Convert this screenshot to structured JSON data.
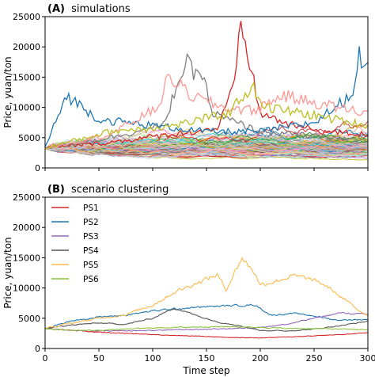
{
  "chart_data": [
    {
      "type": "line",
      "panel_label": "(A)",
      "title": "simulations",
      "ylabel": "Price, yuan/ton",
      "xlabel": "",
      "xlim": [
        0,
        300
      ],
      "ylim": [
        0,
        25000
      ],
      "x_ticks": [
        0,
        50,
        100,
        150,
        200,
        250,
        300
      ],
      "y_ticks": [
        0,
        5000,
        10000,
        15000,
        20000,
        25000
      ],
      "show_x_tick_labels": false,
      "n_series": 100,
      "start_value": 3300,
      "highlights": [
        {
          "color": "#d62728",
          "points": [
            [
              0,
              3300
            ],
            [
              60,
              4200
            ],
            [
              120,
              5600
            ],
            [
              160,
              6500
            ],
            [
              175,
              13000
            ],
            [
              182,
              23500
            ],
            [
              190,
              17500
            ],
            [
              200,
              9000
            ],
            [
              230,
              7000
            ],
            [
              260,
              6000
            ],
            [
              300,
              5500
            ]
          ]
        },
        {
          "color": "#7f7f7f",
          "points": [
            [
              0,
              3300
            ],
            [
              60,
              5000
            ],
            [
              110,
              7000
            ],
            [
              125,
              15000
            ],
            [
              132,
              17300
            ],
            [
              140,
              15000
            ],
            [
              145,
              16800
            ],
            [
              155,
              9000
            ],
            [
              200,
              6000
            ],
            [
              300,
              4500
            ]
          ]
        },
        {
          "color": "#1f77b4",
          "points": [
            [
              0,
              3300
            ],
            [
              20,
              12000
            ],
            [
              50,
              8000
            ],
            [
              100,
              7000
            ],
            [
              150,
              6000
            ],
            [
              200,
              6000
            ],
            [
              250,
              7500
            ],
            [
              285,
              12000
            ],
            [
              292,
              18600
            ],
            [
              300,
              16000
            ]
          ]
        },
        {
          "color": "#ff9896",
          "points": [
            [
              0,
              3300
            ],
            [
              60,
              5500
            ],
            [
              105,
              10000
            ],
            [
              115,
              15200
            ],
            [
              135,
              12000
            ],
            [
              165,
              10000
            ],
            [
              195,
              9500
            ],
            [
              220,
              12000
            ],
            [
              245,
              11000
            ],
            [
              300,
              9000
            ]
          ]
        },
        {
          "color": "#bcbd22",
          "points": [
            [
              0,
              3300
            ],
            [
              60,
              6000
            ],
            [
              120,
              7000
            ],
            [
              170,
              9000
            ],
            [
              192,
              13500
            ],
            [
              205,
              10000
            ],
            [
              240,
              9000
            ],
            [
              300,
              7000
            ]
          ]
        }
      ]
    },
    {
      "type": "line",
      "panel_label": "(B)",
      "title": "scenario clustering",
      "ylabel": "Price, yuan/ton",
      "xlabel": "Time step",
      "xlim": [
        0,
        300
      ],
      "ylim": [
        0,
        25000
      ],
      "x_ticks": [
        0,
        50,
        100,
        150,
        200,
        250,
        300
      ],
      "y_ticks": [
        0,
        5000,
        10000,
        15000,
        20000,
        25000
      ],
      "legend_position": "top-left",
      "series": [
        {
          "name": "PS1",
          "color": "#d62728",
          "points": [
            [
              0,
              3300
            ],
            [
              25,
              3000
            ],
            [
              50,
              2700
            ],
            [
              75,
              2500
            ],
            [
              100,
              2300
            ],
            [
              125,
              2150
            ],
            [
              150,
              2000
            ],
            [
              175,
              1800
            ],
            [
              200,
              1750
            ],
            [
              225,
              1900
            ],
            [
              250,
              2100
            ],
            [
              275,
              2300
            ],
            [
              300,
              2600
            ]
          ]
        },
        {
          "name": "PS2",
          "color": "#1f77b4",
          "points": [
            [
              0,
              3300
            ],
            [
              25,
              4600
            ],
            [
              50,
              5200
            ],
            [
              75,
              5500
            ],
            [
              100,
              6200
            ],
            [
              125,
              6600
            ],
            [
              150,
              6900
            ],
            [
              175,
              7100
            ],
            [
              195,
              7200
            ],
            [
              210,
              5500
            ],
            [
              230,
              5800
            ],
            [
              250,
              5400
            ],
            [
              270,
              4700
            ],
            [
              300,
              4800
            ]
          ]
        },
        {
          "name": "PS3",
          "color": "#9467bd",
          "points": [
            [
              0,
              3300
            ],
            [
              25,
              3000
            ],
            [
              50,
              2900
            ],
            [
              75,
              2900
            ],
            [
              100,
              3000
            ],
            [
              125,
              3100
            ],
            [
              150,
              3200
            ],
            [
              175,
              3300
            ],
            [
              200,
              3500
            ],
            [
              225,
              4000
            ],
            [
              250,
              5000
            ],
            [
              275,
              5900
            ],
            [
              300,
              5600
            ]
          ]
        },
        {
          "name": "PS4",
          "color": "#555555",
          "points": [
            [
              0,
              3300
            ],
            [
              25,
              3900
            ],
            [
              50,
              4200
            ],
            [
              75,
              4000
            ],
            [
              100,
              5000
            ],
            [
              120,
              6700
            ],
            [
              140,
              5500
            ],
            [
              160,
              4400
            ],
            [
              175,
              4000
            ],
            [
              200,
              3000
            ],
            [
              225,
              2900
            ],
            [
              250,
              3200
            ],
            [
              275,
              3800
            ],
            [
              300,
              4500
            ]
          ]
        },
        {
          "name": "PS5",
          "color": "#fdb94e",
          "points": [
            [
              0,
              3300
            ],
            [
              25,
              4200
            ],
            [
              50,
              5000
            ],
            [
              75,
              5600
            ],
            [
              100,
              7200
            ],
            [
              120,
              9300
            ],
            [
              140,
              10800
            ],
            [
              160,
              12200
            ],
            [
              168,
              9700
            ],
            [
              183,
              15000
            ],
            [
              195,
              12500
            ],
            [
              200,
              10500
            ],
            [
              215,
              11200
            ],
            [
              230,
              12000
            ],
            [
              245,
              11500
            ],
            [
              260,
              10500
            ],
            [
              275,
              8500
            ],
            [
              290,
              6500
            ],
            [
              300,
              5500
            ]
          ]
        },
        {
          "name": "PS6",
          "color": "#8cc63f",
          "points": [
            [
              0,
              3300
            ],
            [
              25,
              3000
            ],
            [
              50,
              3000
            ],
            [
              75,
              3200
            ],
            [
              100,
              3400
            ],
            [
              125,
              3500
            ],
            [
              150,
              3600
            ],
            [
              175,
              3600
            ],
            [
              200,
              3500
            ],
            [
              225,
              3300
            ],
            [
              250,
              3300
            ],
            [
              275,
              3200
            ],
            [
              300,
              3100
            ]
          ]
        }
      ]
    }
  ]
}
